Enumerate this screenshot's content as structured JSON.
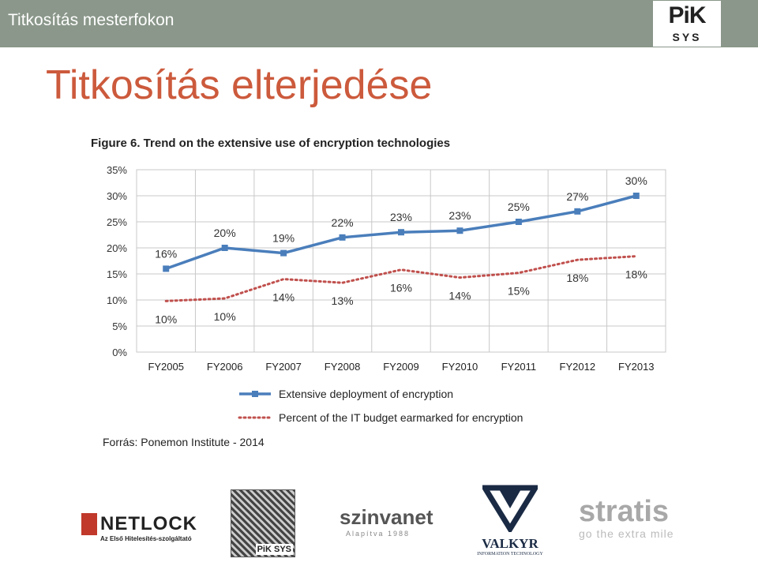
{
  "header": {
    "title": "Titkosítás mesterfokon",
    "logo_text": "PiK",
    "logo_sub": "SYS"
  },
  "slide": {
    "title": "Titkosítás elterjedése",
    "source": "Forrás: Ponemon Institute - 2014"
  },
  "colors": {
    "topbar": "#8a978a",
    "title": "#cc5a3c",
    "series1": "#4a7ebb",
    "series2": "#c0504d"
  },
  "chart_data": {
    "type": "line",
    "title": "Figure 6.  Trend on the extensive use of encryption technologies",
    "categories": [
      "FY2005",
      "FY2006",
      "FY2007",
      "FY2008",
      "FY2009",
      "FY2010",
      "FY2011",
      "FY2012",
      "FY2013"
    ],
    "y_ticks": [
      "0%",
      "5%",
      "10%",
      "15%",
      "20%",
      "25%",
      "30%",
      "35%"
    ],
    "ylim": [
      0,
      35
    ],
    "grid": true,
    "legend_position": "bottom",
    "series": [
      {
        "name": "Extensive deployment of encryption",
        "values": [
          16,
          20,
          19,
          22,
          23,
          23.3,
          25,
          27,
          30
        ],
        "labels": [
          "16%",
          "20%",
          "19%",
          "22%",
          "23%",
          "23%",
          "25%",
          "27%",
          "30%"
        ],
        "style": "solid-square-markers"
      },
      {
        "name": "Percent of the IT budget earmarked for encryption",
        "values": [
          9.8,
          10.3,
          14,
          13.3,
          15.8,
          14.3,
          15.2,
          17.7,
          18.4
        ],
        "labels": [
          "10%",
          "10%",
          "14%",
          "13%",
          "16%",
          "14%",
          "15%",
          "18%",
          "18%"
        ],
        "style": "dotted"
      }
    ]
  },
  "footer_logos": [
    {
      "name": "NETLOCK",
      "sub": "Az Első Hitelesítés-szolgáltató"
    },
    {
      "name": "PiK SYS"
    },
    {
      "name": "szinvanet",
      "sub": "Alapítva 1988"
    },
    {
      "name": "VALKYR",
      "sub": "INFORMATION TECHNOLOGY"
    },
    {
      "name": "stratis",
      "sub": "go the extra mile"
    }
  ]
}
